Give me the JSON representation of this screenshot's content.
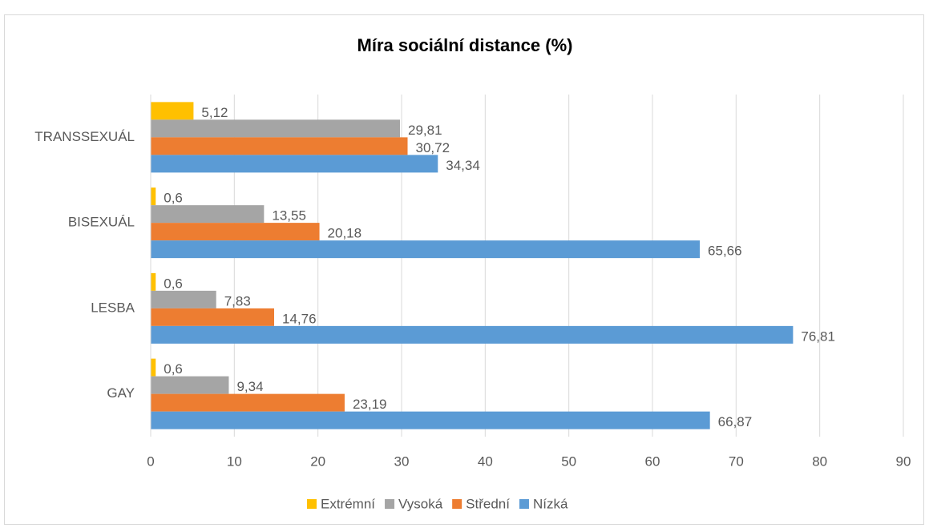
{
  "chart_data": {
    "type": "hbar",
    "title": "Míra sociální distance (%)",
    "categories": [
      "GAY",
      "LESBA",
      "BISEXUÁL",
      "TRANSSEXUÁL"
    ],
    "series": [
      {
        "name": "Extrémní",
        "color": "#ffc000",
        "values": [
          0.6,
          0.6,
          0.6,
          5.12
        ],
        "value_labels": [
          "0,6",
          "0,6",
          "0,6",
          "5,12"
        ]
      },
      {
        "name": "Vysoká",
        "color": "#a5a5a5",
        "values": [
          9.34,
          7.83,
          13.55,
          29.81
        ],
        "value_labels": [
          "9,34",
          "7,83",
          "13,55",
          "29,81"
        ]
      },
      {
        "name": "Střední",
        "color": "#ed7d31",
        "values": [
          23.19,
          14.76,
          20.18,
          30.72
        ],
        "value_labels": [
          "23,19",
          "14,76",
          "20,18",
          "30,72"
        ]
      },
      {
        "name": "Nízká",
        "color": "#5b9bd5",
        "values": [
          66.87,
          76.81,
          65.66,
          34.34
        ],
        "value_labels": [
          "66,87",
          "76,81",
          "65,66",
          "34,34"
        ]
      }
    ],
    "xlim": [
      0,
      90
    ],
    "xticks": [
      0,
      10,
      20,
      30,
      40,
      50,
      60,
      70,
      80,
      90
    ],
    "grid": true,
    "legend": "bottom"
  }
}
